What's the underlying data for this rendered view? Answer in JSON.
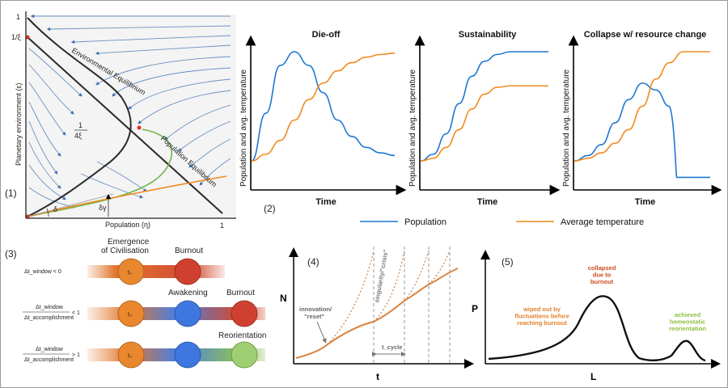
{
  "panel_labels": [
    "(1)",
    "(2)",
    "(3)",
    "(4)",
    "(5)"
  ],
  "phase": {
    "y_top": "1",
    "y_mid": "1/ξ",
    "y_label": "Planetary environment (ε)",
    "x_label": "Population (η)",
    "x_end": "1",
    "frac_num": "1",
    "frac_den": "4ξ",
    "env_eq": "Environmental Equilibrium",
    "pop_eq": "Population Equilibrium",
    "delta": "δ",
    "delta_gamma": "δγ"
  },
  "colors": {
    "population": "#1f77d4",
    "temperature": "#f28a1e",
    "civ": "#d0581c",
    "flow": "#3b6fb0"
  },
  "chart_data": [
    {
      "type": "line",
      "title": "Die-off",
      "xlabel": "Time",
      "ylabel": "Population and avg. temperature",
      "x": [
        0,
        1,
        2,
        3,
        4,
        5,
        6,
        7,
        8,
        9,
        10
      ],
      "series": [
        {
          "name": "Population",
          "values": [
            0.2,
            0.55,
            0.9,
            1.0,
            0.9,
            0.7,
            0.5,
            0.38,
            0.3,
            0.26,
            0.24
          ]
        },
        {
          "name": "Average temperature",
          "values": [
            0.2,
            0.25,
            0.35,
            0.5,
            0.65,
            0.77,
            0.86,
            0.92,
            0.96,
            0.98,
            0.99
          ]
        }
      ]
    },
    {
      "type": "line",
      "title": "Sustainability",
      "xlabel": "Time",
      "ylabel": "Population and avg. temperature",
      "x": [
        0,
        1,
        2,
        3,
        4,
        5,
        6,
        7,
        8,
        9,
        10
      ],
      "series": [
        {
          "name": "Population",
          "values": [
            0.2,
            0.25,
            0.4,
            0.62,
            0.82,
            0.93,
            0.98,
            1.0,
            1.0,
            1.0,
            1.0
          ]
        },
        {
          "name": "Average temperature",
          "values": [
            0.2,
            0.22,
            0.3,
            0.43,
            0.58,
            0.69,
            0.74,
            0.75,
            0.75,
            0.75,
            0.75
          ]
        }
      ]
    },
    {
      "type": "line",
      "title": "Collapse w/ resource change",
      "xlabel": "Time",
      "ylabel": "Population and avg. temperature",
      "x": [
        0,
        1,
        2,
        3,
        4,
        5,
        6,
        7,
        8,
        9,
        10
      ],
      "series": [
        {
          "name": "Population",
          "values": [
            0.2,
            0.24,
            0.32,
            0.48,
            0.65,
            0.77,
            0.72,
            0.6,
            0.08,
            0.08,
            0.08
          ]
        },
        {
          "name": "Average temperature",
          "values": [
            0.2,
            0.22,
            0.26,
            0.33,
            0.43,
            0.6,
            0.8,
            0.92,
            1.0,
            1.0,
            1.0
          ]
        }
      ]
    }
  ],
  "legend": {
    "population": "Population",
    "temperature": "Average temperature"
  },
  "timeline": {
    "row1_label": "Δt_window < 0",
    "row2_num": "Δt_window",
    "row2_den": "Δt_accomplishment",
    "row2_cmp": "< 1",
    "row3_num": "Δt_window",
    "row3_den": "Δt_accomplishment",
    "row3_cmp": "> 1",
    "emergence_line1": "Emergence",
    "emergence_line2": "of Civilisation",
    "burnout": "Burnout",
    "awakening": "Awakening",
    "reorientation": "Reorientation",
    "t0": "t₀"
  },
  "growth": {
    "y_label": "N",
    "x_label": "t",
    "innovation1": "innovation/",
    "innovation2": "\"reset\"",
    "singularity": "singularity/\"crisis\"",
    "tcycle": "t_cycle"
  },
  "distribution": {
    "y_label": "P",
    "x_label": "L",
    "collapsed": [
      "collapsed",
      "due to",
      "burnout"
    ],
    "wiped": [
      "wiped out by",
      "fluctuations before",
      "reaching burnout"
    ],
    "achieved": [
      "achieved",
      "homeostatic",
      "reorientation"
    ],
    "c_red": "#d14a1f",
    "c_orange": "#e2812e",
    "c_green": "#8cbf3f"
  }
}
